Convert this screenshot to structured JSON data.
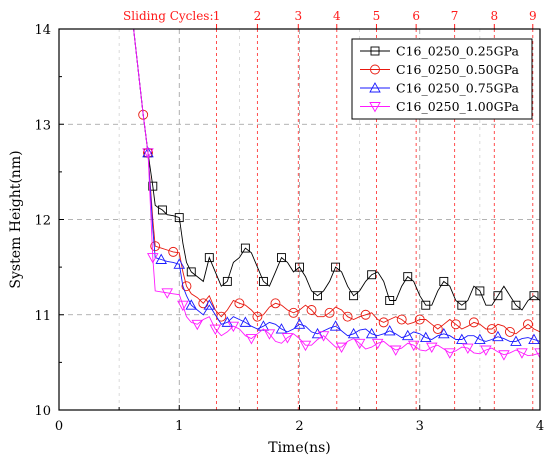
{
  "chart_data": {
    "type": "line",
    "xlabel": "Time(ns)",
    "ylabel": "System Height(nm)",
    "xlim": [
      0,
      4
    ],
    "ylim": [
      10,
      14
    ],
    "x_ticks": [
      "0",
      "1",
      "2",
      "3",
      "4"
    ],
    "y_ticks": [
      "10",
      "11",
      "12",
      "13",
      "14"
    ],
    "grid": true,
    "legend_position": "top-right",
    "top_axis": {
      "label": "Sliding Cycles:",
      "cycles": [
        {
          "label": "1",
          "x": 1.31
        },
        {
          "label": "2",
          "x": 1.65
        },
        {
          "label": "3",
          "x": 1.99
        },
        {
          "label": "4",
          "x": 2.31
        },
        {
          "label": "5",
          "x": 2.64
        },
        {
          "label": "6",
          "x": 2.97
        },
        {
          "label": "7",
          "x": 3.29
        },
        {
          "label": "8",
          "x": 3.62
        },
        {
          "label": "9",
          "x": 3.94
        }
      ],
      "color": "#ff1a1a"
    },
    "series": [
      {
        "name": "C16_0250_0.25GPa",
        "color": "#000000",
        "marker": "square",
        "points": [
          [
            0.62,
            14.0
          ],
          [
            0.7,
            13.1
          ],
          [
            0.74,
            12.7
          ],
          [
            0.78,
            12.35
          ],
          [
            0.8,
            12.15
          ],
          [
            0.82,
            12.13
          ],
          [
            0.86,
            12.1
          ],
          [
            0.9,
            12.05
          ],
          [
            0.95,
            12.04
          ],
          [
            1.0,
            12.02
          ],
          [
            1.03,
            11.75
          ],
          [
            1.06,
            11.55
          ],
          [
            1.1,
            11.45
          ],
          [
            1.15,
            11.4
          ],
          [
            1.2,
            11.35
          ],
          [
            1.25,
            11.6
          ],
          [
            1.3,
            11.45
          ],
          [
            1.35,
            11.3
          ],
          [
            1.4,
            11.35
          ],
          [
            1.45,
            11.55
          ],
          [
            1.5,
            11.6
          ],
          [
            1.55,
            11.7
          ],
          [
            1.6,
            11.65
          ],
          [
            1.65,
            11.5
          ],
          [
            1.7,
            11.35
          ],
          [
            1.75,
            11.3
          ],
          [
            1.8,
            11.45
          ],
          [
            1.85,
            11.6
          ],
          [
            1.9,
            11.55
          ],
          [
            1.95,
            11.45
          ],
          [
            2.0,
            11.5
          ],
          [
            2.05,
            11.4
          ],
          [
            2.1,
            11.25
          ],
          [
            2.15,
            11.2
          ],
          [
            2.2,
            11.25
          ],
          [
            2.25,
            11.35
          ],
          [
            2.3,
            11.5
          ],
          [
            2.35,
            11.45
          ],
          [
            2.4,
            11.3
          ],
          [
            2.45,
            11.2
          ],
          [
            2.5,
            11.25
          ],
          [
            2.55,
            11.35
          ],
          [
            2.6,
            11.42
          ],
          [
            2.65,
            11.45
          ],
          [
            2.7,
            11.35
          ],
          [
            2.75,
            11.15
          ],
          [
            2.8,
            11.15
          ],
          [
            2.85,
            11.3
          ],
          [
            2.9,
            11.4
          ],
          [
            2.95,
            11.35
          ],
          [
            3.0,
            11.2
          ],
          [
            3.05,
            11.1
          ],
          [
            3.1,
            11.1
          ],
          [
            3.15,
            11.25
          ],
          [
            3.2,
            11.35
          ],
          [
            3.25,
            11.3
          ],
          [
            3.3,
            11.15
          ],
          [
            3.35,
            11.1
          ],
          [
            3.4,
            11.15
          ],
          [
            3.45,
            11.3
          ],
          [
            3.5,
            11.25
          ],
          [
            3.55,
            11.1
          ],
          [
            3.6,
            11.1
          ],
          [
            3.65,
            11.2
          ],
          [
            3.7,
            11.3
          ],
          [
            3.75,
            11.2
          ],
          [
            3.8,
            11.1
          ],
          [
            3.85,
            11.05
          ],
          [
            3.9,
            11.15
          ],
          [
            3.95,
            11.2
          ],
          [
            4.0,
            11.15
          ]
        ]
      },
      {
        "name": "C16_0250_0.50GPa",
        "color": "#e8190f",
        "marker": "circle",
        "points": [
          [
            0.62,
            14.0
          ],
          [
            0.7,
            13.1
          ],
          [
            0.74,
            12.7
          ],
          [
            0.78,
            12.0
          ],
          [
            0.8,
            11.72
          ],
          [
            0.85,
            11.7
          ],
          [
            0.9,
            11.68
          ],
          [
            0.95,
            11.66
          ],
          [
            1.0,
            11.65
          ],
          [
            1.03,
            11.45
          ],
          [
            1.06,
            11.3
          ],
          [
            1.1,
            11.22
          ],
          [
            1.15,
            11.18
          ],
          [
            1.2,
            11.12
          ],
          [
            1.25,
            11.2
          ],
          [
            1.3,
            11.05
          ],
          [
            1.35,
            10.98
          ],
          [
            1.4,
            11.05
          ],
          [
            1.45,
            11.15
          ],
          [
            1.5,
            11.12
          ],
          [
            1.55,
            11.1
          ],
          [
            1.6,
            11.05
          ],
          [
            1.65,
            10.98
          ],
          [
            1.7,
            11.0
          ],
          [
            1.75,
            11.08
          ],
          [
            1.8,
            11.12
          ],
          [
            1.85,
            11.1
          ],
          [
            1.9,
            11.05
          ],
          [
            1.95,
            11.02
          ],
          [
            2.0,
            11.05
          ],
          [
            2.05,
            11.1
          ],
          [
            2.1,
            11.05
          ],
          [
            2.15,
            10.98
          ],
          [
            2.2,
            10.98
          ],
          [
            2.25,
            11.02
          ],
          [
            2.3,
            11.08
          ],
          [
            2.35,
            11.05
          ],
          [
            2.4,
            10.98
          ],
          [
            2.45,
            10.95
          ],
          [
            2.5,
            10.98
          ],
          [
            2.55,
            11.0
          ],
          [
            2.6,
            11.02
          ],
          [
            2.65,
            10.95
          ],
          [
            2.7,
            10.92
          ],
          [
            2.75,
            10.95
          ],
          [
            2.8,
            10.98
          ],
          [
            2.85,
            10.95
          ],
          [
            2.9,
            10.9
          ],
          [
            2.95,
            10.92
          ],
          [
            3.0,
            10.95
          ],
          [
            3.05,
            10.95
          ],
          [
            3.1,
            10.9
          ],
          [
            3.15,
            10.85
          ],
          [
            3.2,
            10.9
          ],
          [
            3.25,
            10.95
          ],
          [
            3.3,
            10.9
          ],
          [
            3.35,
            10.85
          ],
          [
            3.4,
            10.88
          ],
          [
            3.45,
            10.92
          ],
          [
            3.5,
            10.9
          ],
          [
            3.55,
            10.85
          ],
          [
            3.6,
            10.85
          ],
          [
            3.65,
            10.9
          ],
          [
            3.7,
            10.88
          ],
          [
            3.75,
            10.82
          ],
          [
            3.8,
            10.8
          ],
          [
            3.85,
            10.85
          ],
          [
            3.9,
            10.9
          ],
          [
            3.95,
            10.85
          ],
          [
            4.0,
            10.82
          ]
        ]
      },
      {
        "name": "C16_0250_0.75GPa",
        "color": "#1a1aff",
        "marker": "triangle-up",
        "points": [
          [
            0.62,
            14.0
          ],
          [
            0.7,
            13.1
          ],
          [
            0.74,
            12.7
          ],
          [
            0.78,
            11.9
          ],
          [
            0.8,
            11.6
          ],
          [
            0.85,
            11.58
          ],
          [
            0.9,
            11.56
          ],
          [
            0.95,
            11.55
          ],
          [
            1.0,
            11.53
          ],
          [
            1.03,
            11.3
          ],
          [
            1.06,
            11.2
          ],
          [
            1.1,
            11.1
          ],
          [
            1.15,
            11.05
          ],
          [
            1.2,
            11.0
          ],
          [
            1.25,
            11.1
          ],
          [
            1.3,
            11.0
          ],
          [
            1.35,
            10.9
          ],
          [
            1.4,
            10.92
          ],
          [
            1.45,
            10.98
          ],
          [
            1.5,
            10.95
          ],
          [
            1.55,
            10.92
          ],
          [
            1.6,
            10.88
          ],
          [
            1.65,
            10.85
          ],
          [
            1.7,
            10.88
          ],
          [
            1.75,
            10.92
          ],
          [
            1.8,
            10.9
          ],
          [
            1.85,
            10.85
          ],
          [
            1.9,
            10.82
          ],
          [
            1.95,
            10.85
          ],
          [
            2.0,
            10.9
          ],
          [
            2.05,
            10.88
          ],
          [
            2.1,
            10.82
          ],
          [
            2.15,
            10.8
          ],
          [
            2.2,
            10.83
          ],
          [
            2.25,
            10.86
          ],
          [
            2.3,
            10.88
          ],
          [
            2.35,
            10.83
          ],
          [
            2.4,
            10.78
          ],
          [
            2.45,
            10.8
          ],
          [
            2.5,
            10.84
          ],
          [
            2.55,
            10.85
          ],
          [
            2.6,
            10.8
          ],
          [
            2.65,
            10.78
          ],
          [
            2.7,
            10.8
          ],
          [
            2.75,
            10.83
          ],
          [
            2.8,
            10.8
          ],
          [
            2.85,
            10.76
          ],
          [
            2.9,
            10.78
          ],
          [
            2.95,
            10.82
          ],
          [
            3.0,
            10.8
          ],
          [
            3.05,
            10.76
          ],
          [
            3.1,
            10.74
          ],
          [
            3.15,
            10.78
          ],
          [
            3.2,
            10.8
          ],
          [
            3.25,
            10.78
          ],
          [
            3.3,
            10.74
          ],
          [
            3.35,
            10.74
          ],
          [
            3.4,
            10.78
          ],
          [
            3.45,
            10.78
          ],
          [
            3.5,
            10.74
          ],
          [
            3.55,
            10.72
          ],
          [
            3.6,
            10.74
          ],
          [
            3.65,
            10.77
          ],
          [
            3.7,
            10.75
          ],
          [
            3.75,
            10.72
          ],
          [
            3.8,
            10.72
          ],
          [
            3.85,
            10.75
          ],
          [
            3.9,
            10.76
          ],
          [
            3.95,
            10.74
          ],
          [
            4.0,
            10.72
          ]
        ]
      },
      {
        "name": "C16_0250_1.00GPa",
        "color": "#ff1aff",
        "marker": "triangle-down",
        "points": [
          [
            0.62,
            14.0
          ],
          [
            0.7,
            13.1
          ],
          [
            0.74,
            12.7
          ],
          [
            0.78,
            11.6
          ],
          [
            0.8,
            11.25
          ],
          [
            0.85,
            11.24
          ],
          [
            0.9,
            11.23
          ],
          [
            0.95,
            11.22
          ],
          [
            1.0,
            11.21
          ],
          [
            1.03,
            11.1
          ],
          [
            1.06,
            10.98
          ],
          [
            1.1,
            10.92
          ],
          [
            1.15,
            10.9
          ],
          [
            1.2,
            10.95
          ],
          [
            1.25,
            10.98
          ],
          [
            1.3,
            10.85
          ],
          [
            1.35,
            10.78
          ],
          [
            1.4,
            10.82
          ],
          [
            1.45,
            10.88
          ],
          [
            1.5,
            10.85
          ],
          [
            1.55,
            10.78
          ],
          [
            1.6,
            10.75
          ],
          [
            1.65,
            10.8
          ],
          [
            1.7,
            10.85
          ],
          [
            1.75,
            10.8
          ],
          [
            1.8,
            10.72
          ],
          [
            1.85,
            10.7
          ],
          [
            1.9,
            10.76
          ],
          [
            1.95,
            10.8
          ],
          [
            2.0,
            10.75
          ],
          [
            2.05,
            10.68
          ],
          [
            2.1,
            10.68
          ],
          [
            2.15,
            10.74
          ],
          [
            2.2,
            10.78
          ],
          [
            2.25,
            10.72
          ],
          [
            2.3,
            10.66
          ],
          [
            2.35,
            10.66
          ],
          [
            2.4,
            10.72
          ],
          [
            2.45,
            10.75
          ],
          [
            2.5,
            10.7
          ],
          [
            2.55,
            10.64
          ],
          [
            2.6,
            10.66
          ],
          [
            2.65,
            10.7
          ],
          [
            2.7,
            10.72
          ],
          [
            2.75,
            10.67
          ],
          [
            2.8,
            10.63
          ],
          [
            2.85,
            10.65
          ],
          [
            2.9,
            10.7
          ],
          [
            2.95,
            10.68
          ],
          [
            3.0,
            10.63
          ],
          [
            3.05,
            10.62
          ],
          [
            3.1,
            10.66
          ],
          [
            3.15,
            10.68
          ],
          [
            3.2,
            10.64
          ],
          [
            3.25,
            10.6
          ],
          [
            3.3,
            10.62
          ],
          [
            3.35,
            10.66
          ],
          [
            3.4,
            10.65
          ],
          [
            3.45,
            10.6
          ],
          [
            3.5,
            10.59
          ],
          [
            3.55,
            10.63
          ],
          [
            3.6,
            10.65
          ],
          [
            3.65,
            10.61
          ],
          [
            3.7,
            10.58
          ],
          [
            3.75,
            10.6
          ],
          [
            3.8,
            10.63
          ],
          [
            3.85,
            10.6
          ],
          [
            3.9,
            10.57
          ],
          [
            3.95,
            10.58
          ],
          [
            4.0,
            10.6
          ]
        ]
      }
    ]
  }
}
